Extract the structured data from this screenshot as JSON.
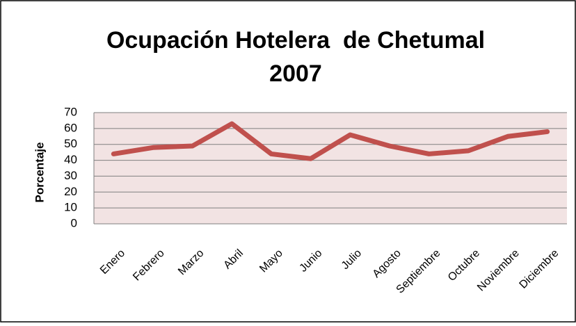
{
  "chart_data": {
    "type": "line",
    "title": [
      "Ocupación Hotelera  de Chetumal",
      "2007"
    ],
    "y_label": "Porcentaje",
    "categories": [
      "Enero",
      "Febrero",
      "Marzo",
      "Abril",
      "Mayo",
      "Junio",
      "Julio",
      "Agosto",
      "Septiembre",
      "Octubre",
      "Noviembre",
      "Diciembre"
    ],
    "values": [
      44,
      48,
      49,
      63,
      44,
      41,
      56,
      49,
      44,
      46,
      55,
      58
    ],
    "color": "#c0504d",
    "ylim": [
      0,
      70
    ],
    "yticks": [
      0,
      10,
      20,
      30,
      40,
      50,
      60,
      70
    ],
    "grid": true
  }
}
